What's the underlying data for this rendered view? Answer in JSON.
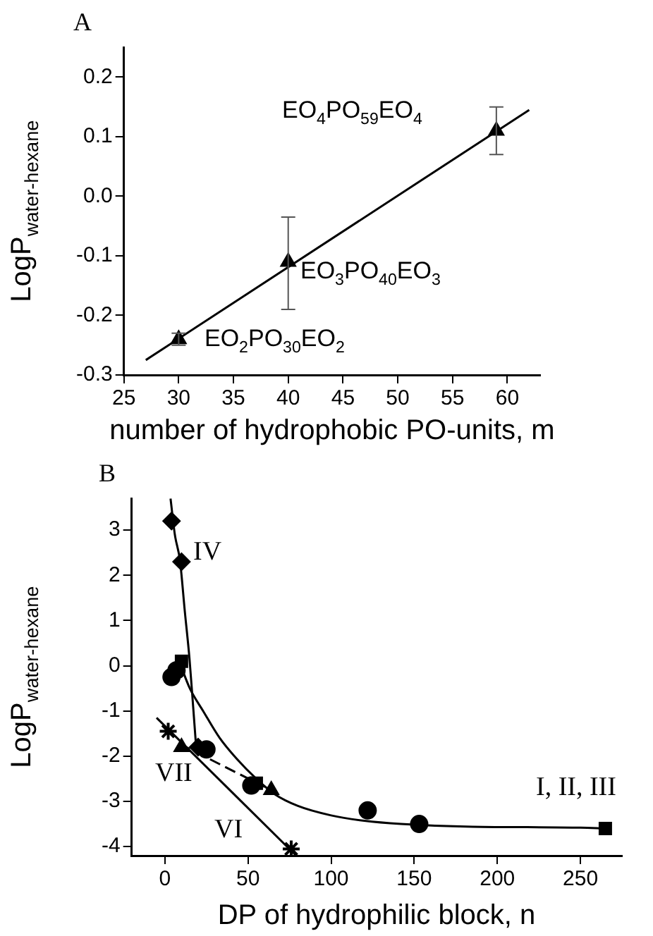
{
  "chart_data": [
    {
      "type": "scatter",
      "title": "A",
      "xlabel": "number of hydrophobic PO-units, m",
      "ylabel": "LogP$_{water-hexane}$",
      "xlim": [
        25,
        63
      ],
      "ylim": [
        -0.3,
        0.25
      ],
      "xticks": [
        25,
        30,
        35,
        40,
        45,
        50,
        55,
        60
      ],
      "yticks": [
        -0.3,
        -0.2,
        -0.1,
        {
          "value": 0,
          "label": "0.0"
        },
        0.1,
        0.2
      ],
      "grid": false,
      "legend": false,
      "marker": "triangle",
      "series": [
        {
          "type": "scatter",
          "color": "#000000",
          "x": [
            30,
            40,
            59
          ],
          "values": [
            -0.24,
            -0.11,
            0.11
          ],
          "errors": [
            [
              -0.25,
              -0.23
            ],
            [
              -0.19,
              -0.035
            ],
            [
              0.07,
              0.15
            ]
          ]
        },
        {
          "type": "line",
          "color": "#000000",
          "marker": "none",
          "x": [
            27,
            62
          ],
          "values": [
            -0.275,
            0.145
          ]
        }
      ],
      "annotations": [
        "EO$_{2}$PO$_{30}$EO$_{2}$",
        "EO$_{3}$PO$_{40}$EO$_{3}$",
        "EO$_{4}$PO$_{59}$EO$_{4}$"
      ]
    },
    {
      "type": "scatter",
      "title": "B",
      "xlabel": "DP of hydrophilic block, n",
      "ylabel": "LogP$_{water-hexane}$",
      "xlim": [
        -20,
        275
      ],
      "ylim": [
        -4.2,
        3.7
      ],
      "xticks": [
        0,
        50,
        100,
        150,
        200,
        250
      ],
      "yticks": [
        -4,
        -3,
        -2,
        -1,
        0,
        1,
        2,
        3
      ],
      "grid": false,
      "legend": false,
      "series": [
        {
          "color": "#000000",
          "marker": "diamond",
          "x": [
            4,
            10,
            20
          ],
          "values": [
            3.2,
            2.3,
            -1.8
          ]
        },
        {
          "color": "#000000",
          "marker": "square",
          "x": [
            10,
            55,
            265
          ],
          "values": [
            0.1,
            -2.6,
            -3.6
          ]
        },
        {
          "color": "#000000",
          "marker": "circle",
          "x": [
            7,
            52,
            122
          ],
          "values": [
            -0.1,
            -2.65,
            -3.2
          ]
        },
        {
          "color": "#000000",
          "marker": "circle",
          "x": [
            4,
            25,
            153
          ],
          "values": [
            -0.25,
            -1.85,
            -3.5
          ]
        },
        {
          "color": "#000000",
          "marker": "triangle",
          "x": [
            10,
            64
          ],
          "values": [
            -1.8,
            -2.75
          ]
        },
        {
          "color": "#000000",
          "marker": "cross",
          "x": [
            2,
            22,
            76
          ],
          "values": [
            -1.45,
            null,
            -4.05
          ]
        },
        {
          "type": "line",
          "color": "#000000",
          "marker": "none",
          "x": [
            3.4,
            6,
            9.1,
            12,
            14.8,
            17,
            19
          ],
          "values": [
            3.7,
            2.9,
            2.32,
            1.2,
            0.16,
            -0.9,
            -1.9
          ]
        },
        {
          "type": "line",
          "color": "#000000",
          "marker": "none",
          "x": [
            9,
            15,
            23,
            33,
            43,
            55,
            66,
            80,
            100,
            120,
            142,
            185,
            250,
            265
          ],
          "values": [
            0.06,
            -0.5,
            -1.0,
            -1.6,
            -2.05,
            -2.5,
            -2.84,
            -3.1,
            -3.31,
            -3.43,
            -3.5,
            -3.56,
            -3.58,
            -3.6
          ]
        },
        {
          "type": "line",
          "color": "#000000",
          "marker": "none",
          "x": [
            -5,
            79
          ],
          "values": [
            -1.15,
            -4.2
          ]
        },
        {
          "type": "line",
          "color": "#000000",
          "marker": "none",
          "line_style": "dashed",
          "x": [
            9,
            60
          ],
          "values": [
            -1.73,
            -2.68
          ]
        }
      ],
      "annotations": [
        "IV",
        "VII",
        "VI",
        "I, II, III"
      ]
    }
  ]
}
